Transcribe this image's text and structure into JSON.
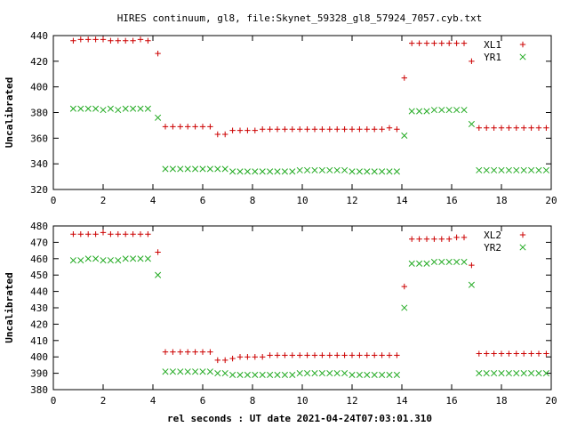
{
  "title": "HIRES continuum, gl8, file:Skynet_59328_gl8_57924_7057.cyb.txt",
  "xlabel": "rel seconds : UT date 2021-04-24T07:03:01.310",
  "colors": {
    "series1": "#cc0000",
    "series2": "#22aa22",
    "frame": "#000000"
  },
  "chart_data": [
    {
      "type": "scatter",
      "ylabel": "Uncalibrated",
      "xlim": [
        0,
        20
      ],
      "ylim": [
        320,
        440
      ],
      "xticks": [
        0,
        2,
        4,
        6,
        8,
        10,
        12,
        14,
        16,
        18,
        20
      ],
      "yticks": [
        320,
        340,
        360,
        380,
        400,
        420,
        440
      ],
      "legend_position": "top-right",
      "series": [
        {
          "name": "XL1",
          "marker": "plus",
          "x": [
            0.8,
            1.1,
            1.4,
            1.7,
            2.0,
            2.3,
            2.6,
            2.9,
            3.2,
            3.5,
            3.8,
            4.2,
            4.5,
            4.8,
            5.1,
            5.4,
            5.7,
            6.0,
            6.3,
            6.6,
            6.9,
            7.2,
            7.5,
            7.8,
            8.1,
            8.4,
            8.7,
            9.0,
            9.3,
            9.6,
            9.9,
            10.2,
            10.5,
            10.8,
            11.1,
            11.4,
            11.7,
            12.0,
            12.3,
            12.6,
            12.9,
            13.2,
            13.5,
            13.8,
            14.1,
            14.4,
            14.7,
            15.0,
            15.3,
            15.6,
            15.9,
            16.2,
            16.5,
            16.8,
            17.1,
            17.4,
            17.7,
            18.0,
            18.3,
            18.6,
            18.9,
            19.2,
            19.5,
            19.8
          ],
          "y": [
            436,
            437,
            437,
            437,
            437,
            436,
            436,
            436,
            436,
            437,
            436,
            426,
            369,
            369,
            369,
            369,
            369,
            369,
            369,
            363,
            363,
            366,
            366,
            366,
            366,
            367,
            367,
            367,
            367,
            367,
            367,
            367,
            367,
            367,
            367,
            367,
            367,
            367,
            367,
            367,
            367,
            367,
            368,
            367,
            407,
            434,
            434,
            434,
            434,
            434,
            434,
            434,
            434,
            420,
            368,
            368,
            368,
            368,
            368,
            368,
            368,
            368,
            368,
            368
          ]
        },
        {
          "name": "YR1",
          "marker": "cross",
          "x": [
            0.8,
            1.1,
            1.4,
            1.7,
            2.0,
            2.3,
            2.6,
            2.9,
            3.2,
            3.5,
            3.8,
            4.2,
            4.5,
            4.8,
            5.1,
            5.4,
            5.7,
            6.0,
            6.3,
            6.6,
            6.9,
            7.2,
            7.5,
            7.8,
            8.1,
            8.4,
            8.7,
            9.0,
            9.3,
            9.6,
            9.9,
            10.2,
            10.5,
            10.8,
            11.1,
            11.4,
            11.7,
            12.0,
            12.3,
            12.6,
            12.9,
            13.2,
            13.5,
            13.8,
            14.1,
            14.4,
            14.7,
            15.0,
            15.3,
            15.6,
            15.9,
            16.2,
            16.5,
            16.8,
            17.1,
            17.4,
            17.7,
            18.0,
            18.3,
            18.6,
            18.9,
            19.2,
            19.5,
            19.8
          ],
          "y": [
            383,
            383,
            383,
            383,
            382,
            383,
            382,
            383,
            383,
            383,
            383,
            376,
            336,
            336,
            336,
            336,
            336,
            336,
            336,
            336,
            336,
            334,
            334,
            334,
            334,
            334,
            334,
            334,
            334,
            334,
            335,
            335,
            335,
            335,
            335,
            335,
            335,
            334,
            334,
            334,
            334,
            334,
            334,
            334,
            362,
            381,
            381,
            381,
            382,
            382,
            382,
            382,
            382,
            371,
            335,
            335,
            335,
            335,
            335,
            335,
            335,
            335,
            335,
            335
          ]
        }
      ]
    },
    {
      "type": "scatter",
      "ylabel": "Uncalibrated",
      "xlim": [
        0,
        20
      ],
      "ylim": [
        380,
        480
      ],
      "xticks": [
        0,
        2,
        4,
        6,
        8,
        10,
        12,
        14,
        16,
        18,
        20
      ],
      "yticks": [
        380,
        390,
        400,
        410,
        420,
        430,
        440,
        450,
        460,
        470,
        480
      ],
      "legend_position": "top-right",
      "series": [
        {
          "name": "XL2",
          "marker": "plus",
          "x": [
            0.8,
            1.1,
            1.4,
            1.7,
            2.0,
            2.3,
            2.6,
            2.9,
            3.2,
            3.5,
            3.8,
            4.2,
            4.5,
            4.8,
            5.1,
            5.4,
            5.7,
            6.0,
            6.3,
            6.6,
            6.9,
            7.2,
            7.5,
            7.8,
            8.1,
            8.4,
            8.7,
            9.0,
            9.3,
            9.6,
            9.9,
            10.2,
            10.5,
            10.8,
            11.1,
            11.4,
            11.7,
            12.0,
            12.3,
            12.6,
            12.9,
            13.2,
            13.5,
            13.8,
            14.1,
            14.4,
            14.7,
            15.0,
            15.3,
            15.6,
            15.9,
            16.2,
            16.5,
            16.8,
            17.1,
            17.4,
            17.7,
            18.0,
            18.3,
            18.6,
            18.9,
            19.2,
            19.5,
            19.8
          ],
          "y": [
            475,
            475,
            475,
            475,
            476,
            475,
            475,
            475,
            475,
            475,
            475,
            464,
            403,
            403,
            403,
            403,
            403,
            403,
            403,
            398,
            398,
            399,
            400,
            400,
            400,
            400,
            401,
            401,
            401,
            401,
            401,
            401,
            401,
            401,
            401,
            401,
            401,
            401,
            401,
            401,
            401,
            401,
            401,
            401,
            443,
            472,
            472,
            472,
            472,
            472,
            472,
            473,
            473,
            456,
            402,
            402,
            402,
            402,
            402,
            402,
            402,
            402,
            402,
            402
          ]
        },
        {
          "name": "YR2",
          "marker": "cross",
          "x": [
            0.8,
            1.1,
            1.4,
            1.7,
            2.0,
            2.3,
            2.6,
            2.9,
            3.2,
            3.5,
            3.8,
            4.2,
            4.5,
            4.8,
            5.1,
            5.4,
            5.7,
            6.0,
            6.3,
            6.6,
            6.9,
            7.2,
            7.5,
            7.8,
            8.1,
            8.4,
            8.7,
            9.0,
            9.3,
            9.6,
            9.9,
            10.2,
            10.5,
            10.8,
            11.1,
            11.4,
            11.7,
            12.0,
            12.3,
            12.6,
            12.9,
            13.2,
            13.5,
            13.8,
            14.1,
            14.4,
            14.7,
            15.0,
            15.3,
            15.6,
            15.9,
            16.2,
            16.5,
            16.8,
            17.1,
            17.4,
            17.7,
            18.0,
            18.3,
            18.6,
            18.9,
            19.2,
            19.5,
            19.8
          ],
          "y": [
            459,
            459,
            460,
            460,
            459,
            459,
            459,
            460,
            460,
            460,
            460,
            450,
            391,
            391,
            391,
            391,
            391,
            391,
            391,
            390,
            390,
            389,
            389,
            389,
            389,
            389,
            389,
            389,
            389,
            389,
            390,
            390,
            390,
            390,
            390,
            390,
            390,
            389,
            389,
            389,
            389,
            389,
            389,
            389,
            430,
            457,
            457,
            457,
            458,
            458,
            458,
            458,
            458,
            444,
            390,
            390,
            390,
            390,
            390,
            390,
            390,
            390,
            390,
            390
          ]
        }
      ]
    }
  ]
}
